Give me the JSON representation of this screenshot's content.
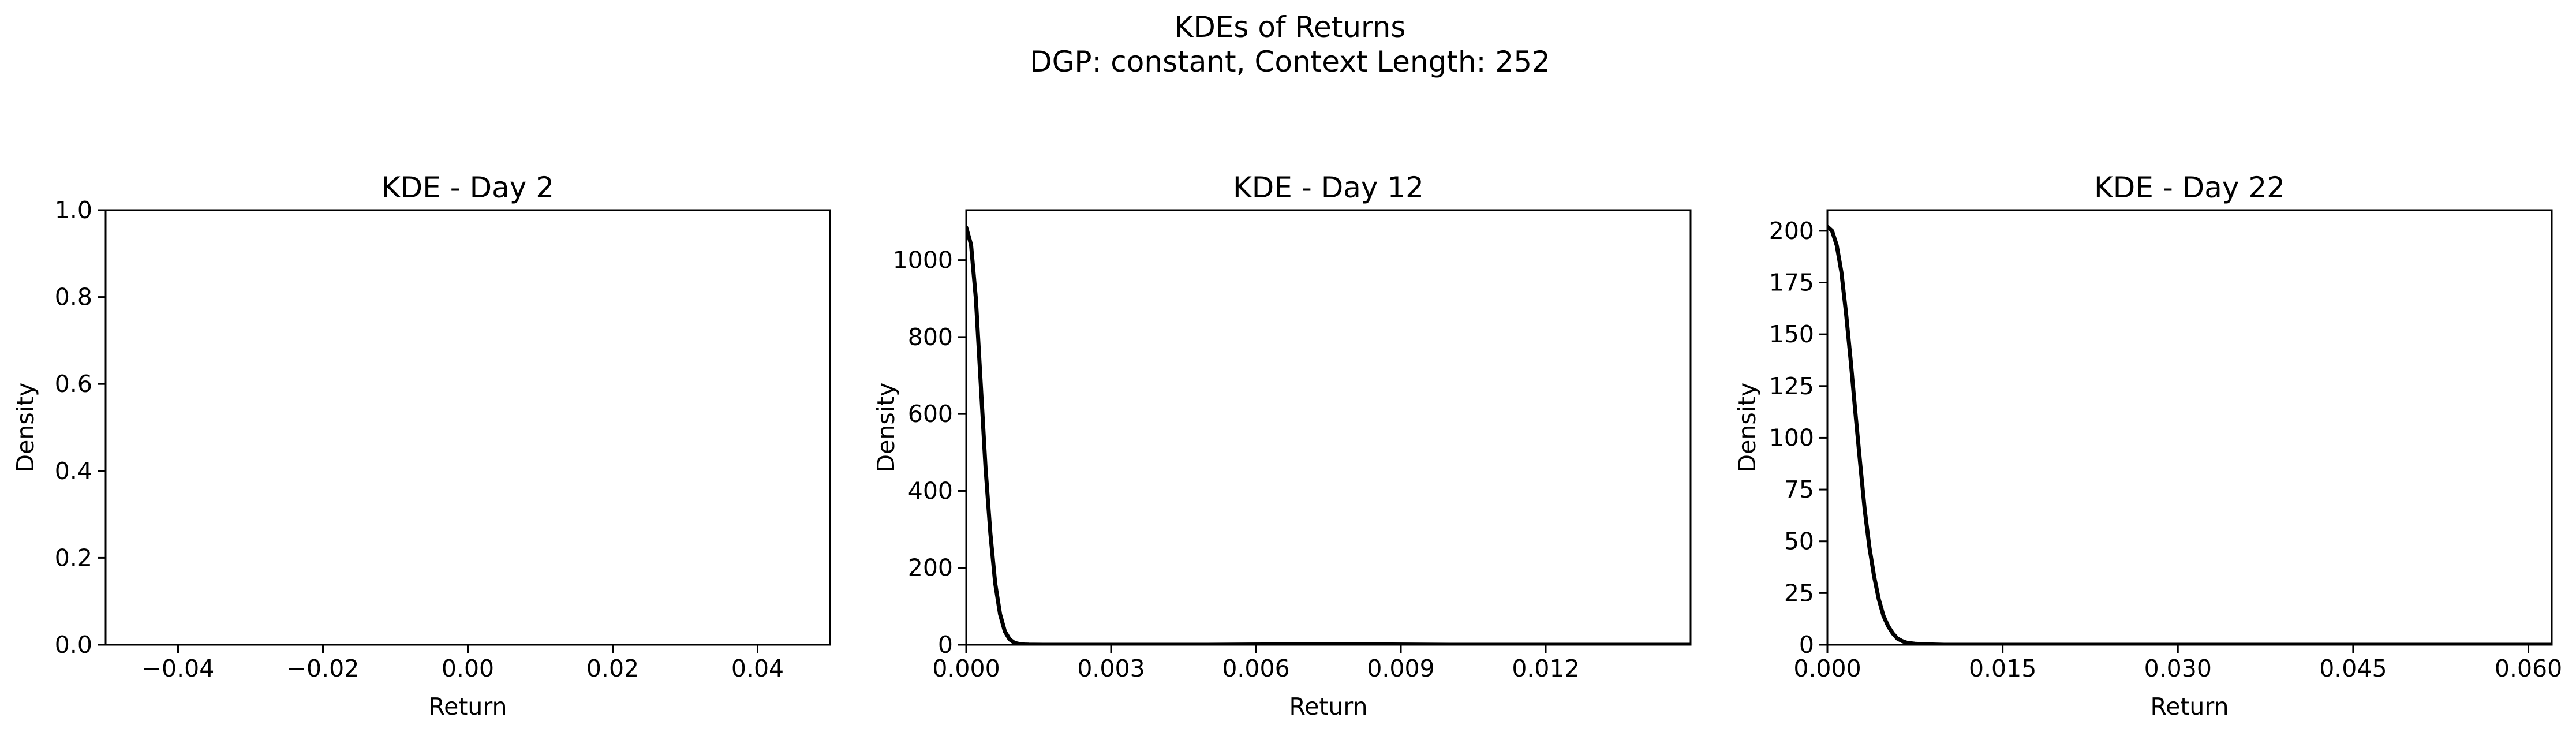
{
  "suptitle": {
    "line1": "KDEs of Returns",
    "line2": "DGP: constant, Context Length: 252"
  },
  "colors": {
    "line": "#000000",
    "background": "#ffffff",
    "axes": "#000000"
  },
  "chart_data": [
    {
      "type": "line",
      "title": "KDE - Day 2",
      "xlabel": "Return",
      "ylabel": "Density",
      "xlim": [
        -0.05,
        0.05
      ],
      "ylim": [
        0,
        1.0
      ],
      "xticks": [
        -0.04,
        -0.02,
        0.0,
        0.02,
        0.04
      ],
      "xtick_labels": [
        "−0.04",
        "−0.02",
        "0.00",
        "0.02",
        "0.04"
      ],
      "yticks": [
        0.0,
        0.2,
        0.4,
        0.6,
        0.8,
        1.0
      ],
      "ytick_labels": [
        "0.0",
        "0.2",
        "0.4",
        "0.6",
        "0.8",
        "1.0"
      ],
      "grid": false,
      "series": [
        {
          "x": [],
          "y": []
        }
      ]
    },
    {
      "type": "line",
      "title": "KDE - Day 12",
      "xlabel": "Return",
      "ylabel": "Density",
      "xlim": [
        0.0,
        0.015
      ],
      "ylim": [
        0,
        1130
      ],
      "xticks": [
        0.0,
        0.003,
        0.006,
        0.009,
        0.012
      ],
      "xtick_labels": [
        "0.000",
        "0.003",
        "0.006",
        "0.009",
        "0.012"
      ],
      "yticks": [
        0,
        200,
        400,
        600,
        800,
        1000
      ],
      "ytick_labels": [
        "0",
        "200",
        "400",
        "600",
        "800",
        "1000"
      ],
      "grid": false,
      "series": [
        {
          "x": [
            0.0,
            0.0001,
            0.0002,
            0.0003,
            0.0004,
            0.0005,
            0.0006,
            0.0007,
            0.0008,
            0.0009,
            0.001,
            0.0011,
            0.0012,
            0.0013,
            0.0014,
            0.0016,
            0.002,
            0.003,
            0.005,
            0.0065,
            0.0075,
            0.0085,
            0.01,
            0.012,
            0.015
          ],
          "y": [
            1085,
            1040,
            900,
            680,
            460,
            290,
            160,
            80,
            35,
            14,
            5,
            2,
            0.8,
            0.3,
            0.1,
            0,
            0,
            0,
            0,
            1,
            2,
            1,
            0,
            0,
            0
          ]
        }
      ]
    },
    {
      "type": "line",
      "title": "KDE - Day 22",
      "xlabel": "Return",
      "ylabel": "Density",
      "xlim": [
        0.0,
        0.062
      ],
      "ylim": [
        0,
        210
      ],
      "xticks": [
        0.0,
        0.015,
        0.03,
        0.045,
        0.06
      ],
      "xtick_labels": [
        "0.000",
        "0.015",
        "0.030",
        "0.045",
        "0.060"
      ],
      "yticks": [
        0,
        25,
        50,
        75,
        100,
        125,
        150,
        175,
        200
      ],
      "ytick_labels": [
        "0",
        "25",
        "50",
        "75",
        "100",
        "125",
        "150",
        "175",
        "200"
      ],
      "grid": false,
      "series": [
        {
          "x": [
            0.0,
            0.0004,
            0.0008,
            0.0012,
            0.0016,
            0.002,
            0.0024,
            0.0028,
            0.0032,
            0.0036,
            0.004,
            0.0044,
            0.0048,
            0.0052,
            0.0056,
            0.006,
            0.0064,
            0.0068,
            0.0075,
            0.0085,
            0.01,
            0.015,
            0.02,
            0.03,
            0.04,
            0.05,
            0.062
          ],
          "y": [
            202,
            200,
            193,
            180,
            160,
            137,
            112,
            88,
            65,
            47,
            33,
            22,
            14,
            9,
            5.5,
            3,
            1.8,
            1,
            0.5,
            0.2,
            0,
            0,
            0,
            0,
            0,
            0,
            0
          ]
        }
      ]
    }
  ]
}
